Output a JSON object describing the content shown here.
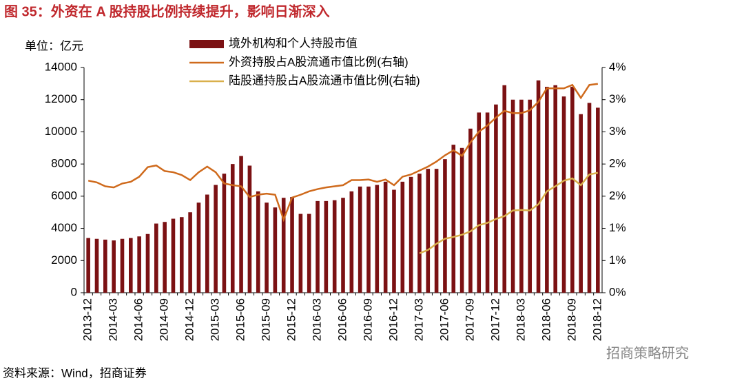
{
  "chart_data": {
    "type": "bar_line",
    "title": "图 35：外资在 A 股持股比例持续提升，影响日渐深入",
    "unit_label": "单位：亿元",
    "source": "资料来源：Wind，招商证券",
    "watermark": "招商策略研究",
    "categories": [
      "2013-12",
      null,
      null,
      "2014-03",
      null,
      null,
      "2014-06",
      null,
      null,
      "2014-09",
      null,
      null,
      "2014-12",
      null,
      null,
      "2015-03",
      null,
      null,
      "2015-06",
      null,
      null,
      "2015-09",
      null,
      null,
      "2015-12",
      null,
      null,
      "2016-03",
      null,
      null,
      "2016-06",
      null,
      null,
      "2016-09",
      null,
      null,
      "2016-12",
      null,
      null,
      "2017-03",
      null,
      null,
      "2017-06",
      null,
      null,
      "2017-09",
      null,
      null,
      "2017-12",
      null,
      null,
      "2018-03",
      null,
      null,
      "2018-06",
      null,
      null,
      "2018-09",
      null,
      null,
      "2018-12"
    ],
    "series": [
      {
        "name": "境外机构和个人持股市值",
        "type": "bar",
        "color": "#7b1113",
        "values": [
          3400,
          3350,
          3300,
          3250,
          3350,
          3400,
          3500,
          3650,
          4300,
          4400,
          4600,
          4700,
          5000,
          5600,
          6100,
          6700,
          7400,
          8000,
          8500,
          7900,
          6300,
          5600,
          5300,
          5900,
          5950,
          4900,
          4900,
          5700,
          5700,
          5750,
          5900,
          6300,
          6600,
          6600,
          6700,
          6900,
          6400,
          6900,
          7200,
          7400,
          7700,
          7700,
          8300,
          9200,
          9000,
          10200,
          11200,
          11200,
          11700,
          12900,
          12000,
          12000,
          12000,
          13200,
          12800,
          12900,
          12200,
          12800,
          11100,
          11800,
          11500
        ]
      },
      {
        "name": "外资持股占A股流通市值比例(右轴)",
        "type": "line",
        "axis": "y2",
        "color": "#cf6a1c",
        "values": [
          1.99,
          1.96,
          1.89,
          1.87,
          1.94,
          1.97,
          2.06,
          2.23,
          2.26,
          2.16,
          2.14,
          2.09,
          2.0,
          2.14,
          2.24,
          2.14,
          1.94,
          1.91,
          1.89,
          1.7,
          1.74,
          1.76,
          1.74,
          1.3,
          1.69,
          1.74,
          1.8,
          1.84,
          1.87,
          1.89,
          1.91,
          2.0,
          2.0,
          2.01,
          1.97,
          2.01,
          1.91,
          2.06,
          2.1,
          2.17,
          2.24,
          2.33,
          2.44,
          2.53,
          2.43,
          2.67,
          2.86,
          2.97,
          3.11,
          3.23,
          3.19,
          3.19,
          3.24,
          3.39,
          3.63,
          3.63,
          3.63,
          3.69,
          3.46,
          3.69,
          3.71
        ]
      },
      {
        "name": "陆股通持股占A股流通市值比例(右轴)",
        "type": "line",
        "axis": "y2",
        "color": "#d9b04c",
        "values": [
          null,
          null,
          null,
          null,
          null,
          null,
          null,
          null,
          null,
          null,
          null,
          null,
          null,
          null,
          null,
          null,
          null,
          null,
          null,
          null,
          null,
          null,
          null,
          null,
          null,
          null,
          null,
          null,
          null,
          null,
          null,
          null,
          null,
          null,
          null,
          null,
          null,
          null,
          null,
          0.7,
          0.76,
          0.87,
          0.96,
          0.99,
          1.03,
          1.09,
          1.2,
          1.24,
          1.31,
          1.36,
          1.46,
          1.47,
          1.46,
          1.57,
          1.8,
          1.89,
          1.99,
          2.03,
          1.91,
          2.1,
          2.13
        ]
      }
    ],
    "ylim": [
      0,
      14000
    ],
    "yticks": [
      0,
      2000,
      4000,
      6000,
      8000,
      10000,
      12000,
      14000
    ],
    "y2lim": [
      0,
      4
    ],
    "y2ticks": [
      {
        "value": 0,
        "label": "0%"
      },
      {
        "value": 0.5714,
        "label": "1%"
      },
      {
        "value": 1.1429,
        "label": "1%"
      },
      {
        "value": 1.7143,
        "label": "2%"
      },
      {
        "value": 2.2857,
        "label": "2%"
      },
      {
        "value": 2.8571,
        "label": "3%"
      },
      {
        "value": 3.4286,
        "label": "3%"
      },
      {
        "value": 4,
        "label": "4%"
      }
    ]
  }
}
